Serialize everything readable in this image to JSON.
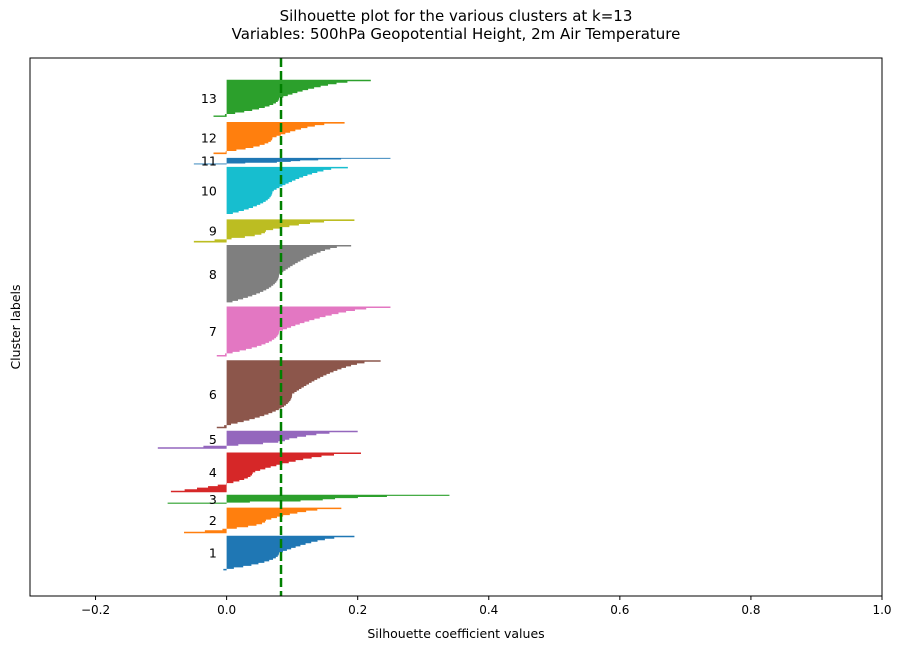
{
  "chart_data": {
    "type": "silhouette",
    "title": "Silhouette plot for the various clusters at k=13",
    "subtitle": "Variables: 500hPa Geopotential Height, 2m Air Temperature",
    "xlabel": "Silhouette coefficient values",
    "ylabel": "Cluster labels",
    "xlim": [
      -0.3,
      1.0
    ],
    "xticks": [
      "−0.2",
      "0.0",
      "0.2",
      "0.4",
      "0.6",
      "0.8",
      "1.0"
    ],
    "xtick_values": [
      -0.2,
      0.0,
      0.2,
      0.4,
      0.6,
      0.8,
      1.0
    ],
    "average_silhouette": 0.083,
    "average_line_color": "#008000",
    "clusters": [
      {
        "label": "1",
        "color": "#1f77b4",
        "y_start": 5,
        "y_end": 6.35,
        "max": 0.195,
        "min": -0.005,
        "median": 0.08
      },
      {
        "label": "2",
        "color": "#ff7f0e",
        "y_start": 6.45,
        "y_end": 7.45,
        "max": 0.175,
        "min": -0.065,
        "median": 0.06
      },
      {
        "label": "3",
        "color": "#2ca02c",
        "y_start": 7.6,
        "y_end": 7.95,
        "max": 0.34,
        "min": -0.09,
        "median": 0.15
      },
      {
        "label": "4",
        "color": "#d62728",
        "y_start": 8.05,
        "y_end": 9.6,
        "max": 0.205,
        "min": -0.085,
        "median": 0.04
      },
      {
        "label": "5",
        "color": "#9467bd",
        "y_start": 9.75,
        "y_end": 10.45,
        "max": 0.2,
        "min": -0.105,
        "median": 0.09
      },
      {
        "label": "6",
        "color": "#8c564b",
        "y_start": 10.55,
        "y_end": 13.2,
        "max": 0.235,
        "min": -0.015,
        "median": 0.1
      },
      {
        "label": "7",
        "color": "#e377c2",
        "y_start": 13.35,
        "y_end": 15.3,
        "max": 0.25,
        "min": -0.015,
        "median": 0.08
      },
      {
        "label": "8",
        "color": "#7f7f7f",
        "y_start": 15.4,
        "y_end": 17.7,
        "max": 0.19,
        "min": 0.0,
        "median": 0.08
      },
      {
        "label": "9",
        "color": "#bcbd22",
        "y_start": 17.8,
        "y_end": 18.7,
        "max": 0.195,
        "min": -0.05,
        "median": 0.06
      },
      {
        "label": "10",
        "color": "#17becf",
        "y_start": 18.85,
        "y_end": 20.75,
        "max": 0.185,
        "min": 0.0,
        "median": 0.07
      },
      {
        "label": "11",
        "color": "#1f77b4",
        "y_start": 20.85,
        "y_end": 21.1,
        "max": 0.25,
        "min": -0.05,
        "median": 0.1
      },
      {
        "label": "12",
        "color": "#ff7f0e",
        "y_start": 21.25,
        "y_end": 22.5,
        "max": 0.18,
        "min": -0.02,
        "median": 0.07
      },
      {
        "label": "13",
        "color": "#2ca02c",
        "y_start": 22.7,
        "y_end": 24.15,
        "max": 0.22,
        "min": -0.02,
        "median": 0.08
      }
    ],
    "ylim": [
      4.0,
      25.0
    ],
    "grid": false
  }
}
